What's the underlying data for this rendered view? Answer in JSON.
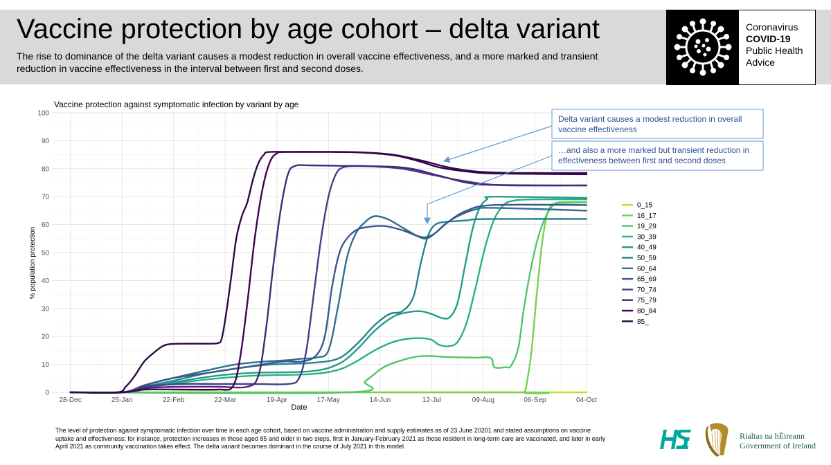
{
  "header": {
    "title": "Vaccine protection by age cohort – delta variant",
    "subtitle": "The rise to dominance of the delta variant causes a modest reduction in overall vaccine effectiveness, and a more marked and transient reduction in vaccine effectiveness in the interval between first and second doses."
  },
  "logo": {
    "line1": "Coronavirus",
    "line2": "COVID-19",
    "line3": "Public Health",
    "line4": "Advice",
    "icon": "virus-icon"
  },
  "footnote": "The level of protection against symptomatic infection over time in each age cohort, based on vaccine administration and supply estimates as of 23 June 20201 and stated assumptions on vaccine uptake and effectiveness; for instance, protection increases in those aged 85 and older in two steps, first in January-February 2021 as those resident in long-term care are vaccinated, and later in early April 2021 as community vaccination takes effect. The delta variant becomes dominant in the course of July 2021 in this model.",
  "footer_logos": {
    "hse_icon": "hse-logo-icon",
    "harp_icon": "harp-icon",
    "gov_line1": "Rialtas na hÉireann",
    "gov_line2": "Government of Ireland"
  },
  "chart_data": {
    "type": "line",
    "title": "Vaccine protection against symptomatic infection by variant by age",
    "xlabel": "Date",
    "ylabel": "% population protection",
    "ylim": [
      0,
      100
    ],
    "yticks": [
      0,
      10,
      20,
      30,
      40,
      50,
      60,
      70,
      80,
      90,
      100
    ],
    "xrange_days": [
      -10,
      283
    ],
    "xticks": [
      {
        "label": "28-Dec",
        "day": 0
      },
      {
        "label": "25-Jan",
        "day": 28
      },
      {
        "label": "22-Feb",
        "day": 56
      },
      {
        "label": "22-Mar",
        "day": 84
      },
      {
        "label": "19-Apr",
        "day": 112
      },
      {
        "label": "17-May",
        "day": 140
      },
      {
        "label": "14-Jun",
        "day": 168
      },
      {
        "label": "12-Jul",
        "day": 196
      },
      {
        "label": "09-Aug",
        "day": 224
      },
      {
        "label": "06-Sep",
        "day": 252
      },
      {
        "label": "04-Oct",
        "day": 280
      }
    ],
    "grid": true,
    "legend_position": "right",
    "series": [
      {
        "name": "0_15",
        "color": "#bddf26",
        "points": [
          [
            0,
            0
          ],
          [
            280,
            0
          ]
        ]
      },
      {
        "name": "16_17",
        "color": "#7ad151",
        "points": [
          [
            0,
            0
          ],
          [
            240,
            0
          ],
          [
            246,
            0
          ],
          [
            248,
            5
          ],
          [
            250,
            14
          ],
          [
            252,
            28
          ],
          [
            254,
            42
          ],
          [
            256,
            54
          ],
          [
            258,
            62
          ],
          [
            260,
            66
          ],
          [
            263,
            67.5
          ],
          [
            280,
            68
          ]
        ]
      },
      {
        "name": "19_29",
        "color": "#52c569",
        "points": [
          [
            0,
            0
          ],
          [
            150,
            0
          ],
          [
            160,
            4
          ],
          [
            170,
            9
          ],
          [
            180,
            11.5
          ],
          [
            188,
            12.8
          ],
          [
            195,
            13
          ],
          [
            205,
            12.6
          ],
          [
            220,
            12.4
          ],
          [
            228,
            12.3
          ],
          [
            230,
            9
          ],
          [
            236,
            9
          ],
          [
            239,
            9.5
          ],
          [
            243,
            16
          ],
          [
            246,
            30
          ],
          [
            250,
            45
          ],
          [
            254,
            56
          ],
          [
            258,
            63
          ],
          [
            262,
            67
          ],
          [
            266,
            68
          ],
          [
            280,
            68
          ]
        ]
      },
      {
        "name": "30_39",
        "color": "#2ab07f",
        "points": [
          [
            0,
            0
          ],
          [
            30,
            0
          ],
          [
            45,
            2
          ],
          [
            60,
            3.5
          ],
          [
            80,
            5
          ],
          [
            100,
            6
          ],
          [
            130,
            6.5
          ],
          [
            145,
            8
          ],
          [
            155,
            11
          ],
          [
            165,
            15
          ],
          [
            175,
            18
          ],
          [
            185,
            19.3
          ],
          [
            195,
            19
          ],
          [
            200,
            17
          ],
          [
            205,
            16.5
          ],
          [
            210,
            18
          ],
          [
            215,
            25
          ],
          [
            220,
            38
          ],
          [
            225,
            52
          ],
          [
            230,
            62
          ],
          [
            235,
            67
          ],
          [
            240,
            68.5
          ],
          [
            250,
            69
          ],
          [
            280,
            69
          ]
        ]
      },
      {
        "name": "40_49",
        "color": "#1f9e89",
        "points": [
          [
            0,
            0
          ],
          [
            30,
            0
          ],
          [
            45,
            2
          ],
          [
            60,
            4
          ],
          [
            80,
            6
          ],
          [
            100,
            7
          ],
          [
            130,
            7.5
          ],
          [
            145,
            10
          ],
          [
            155,
            15
          ],
          [
            165,
            22
          ],
          [
            175,
            27
          ],
          [
            182,
            28.5
          ],
          [
            190,
            29
          ],
          [
            196,
            28
          ],
          [
            202,
            26.5
          ],
          [
            206,
            27
          ],
          [
            210,
            32
          ],
          [
            214,
            45
          ],
          [
            218,
            58
          ],
          [
            222,
            66
          ],
          [
            226,
            69
          ],
          [
            230,
            70
          ],
          [
            280,
            69.5
          ]
        ]
      },
      {
        "name": "50_59",
        "color": "#25858e",
        "points": [
          [
            0,
            0
          ],
          [
            28,
            0
          ],
          [
            40,
            2
          ],
          [
            55,
            4
          ],
          [
            75,
            7
          ],
          [
            95,
            9
          ],
          [
            110,
            10
          ],
          [
            130,
            10.5
          ],
          [
            145,
            12
          ],
          [
            155,
            17
          ],
          [
            165,
            24
          ],
          [
            173,
            28
          ],
          [
            180,
            29
          ],
          [
            186,
            34
          ],
          [
            190,
            46
          ],
          [
            194,
            56
          ],
          [
            198,
            60
          ],
          [
            204,
            61
          ],
          [
            215,
            61.5
          ],
          [
            225,
            62
          ],
          [
            280,
            62
          ]
        ]
      },
      {
        "name": "60_64",
        "color": "#2d708e",
        "points": [
          [
            0,
            0
          ],
          [
            28,
            0
          ],
          [
            40,
            2.5
          ],
          [
            55,
            5
          ],
          [
            75,
            8
          ],
          [
            90,
            10
          ],
          [
            105,
            11
          ],
          [
            118,
            11.5
          ],
          [
            125,
            12
          ],
          [
            134,
            12.5
          ],
          [
            140,
            15
          ],
          [
            145,
            30
          ],
          [
            150,
            48
          ],
          [
            155,
            57
          ],
          [
            160,
            61
          ],
          [
            165,
            63
          ],
          [
            172,
            62
          ],
          [
            180,
            59
          ],
          [
            188,
            56
          ],
          [
            193,
            55
          ],
          [
            198,
            57
          ],
          [
            203,
            60
          ],
          [
            210,
            63
          ],
          [
            220,
            65.5
          ],
          [
            230,
            66
          ],
          [
            280,
            65
          ]
        ]
      },
      {
        "name": "65_69",
        "color": "#38588c",
        "points": [
          [
            0,
            0
          ],
          [
            28,
            0
          ],
          [
            40,
            2.5
          ],
          [
            55,
            5
          ],
          [
            75,
            7
          ],
          [
            95,
            9
          ],
          [
            115,
            11
          ],
          [
            125,
            11
          ],
          [
            133,
            13
          ],
          [
            138,
            20
          ],
          [
            142,
            38
          ],
          [
            146,
            50
          ],
          [
            150,
            55
          ],
          [
            155,
            58
          ],
          [
            160,
            59
          ],
          [
            170,
            59.5
          ],
          [
            180,
            58
          ],
          [
            188,
            56
          ],
          [
            193,
            55.5
          ],
          [
            198,
            57
          ],
          [
            205,
            61
          ],
          [
            215,
            65
          ],
          [
            230,
            67
          ],
          [
            280,
            67
          ]
        ]
      },
      {
        "name": "70_74",
        "color": "#433e85",
        "points": [
          [
            0,
            0
          ],
          [
            28,
            0
          ],
          [
            40,
            2
          ],
          [
            60,
            3
          ],
          [
            80,
            3
          ],
          [
            100,
            3
          ],
          [
            118,
            3
          ],
          [
            124,
            5
          ],
          [
            128,
            15
          ],
          [
            132,
            35
          ],
          [
            136,
            55
          ],
          [
            140,
            70
          ],
          [
            144,
            78
          ],
          [
            148,
            80.5
          ],
          [
            155,
            81
          ],
          [
            165,
            80.8
          ],
          [
            180,
            80
          ],
          [
            195,
            78
          ],
          [
            210,
            76
          ],
          [
            225,
            74.5
          ],
          [
            240,
            74
          ],
          [
            280,
            74
          ]
        ]
      },
      {
        "name": "75_79",
        "color": "#482878",
        "points": [
          [
            0,
            0
          ],
          [
            28,
            0
          ],
          [
            40,
            1.5
          ],
          [
            60,
            2
          ],
          [
            80,
            2
          ],
          [
            96,
            2
          ],
          [
            102,
            6
          ],
          [
            106,
            22
          ],
          [
            110,
            45
          ],
          [
            114,
            65
          ],
          [
            118,
            78
          ],
          [
            122,
            81
          ],
          [
            130,
            81.2
          ],
          [
            150,
            81
          ],
          [
            170,
            80.8
          ],
          [
            185,
            80
          ],
          [
            200,
            77.5
          ],
          [
            215,
            75
          ],
          [
            230,
            74.2
          ],
          [
            280,
            74
          ]
        ]
      },
      {
        "name": "80_84",
        "color": "#440154",
        "points": [
          [
            0,
            0
          ],
          [
            28,
            0
          ],
          [
            40,
            1
          ],
          [
            60,
            1
          ],
          [
            80,
            1
          ],
          [
            88,
            2
          ],
          [
            92,
            12
          ],
          [
            96,
            32
          ],
          [
            100,
            55
          ],
          [
            104,
            72
          ],
          [
            108,
            82
          ],
          [
            112,
            85.5
          ],
          [
            118,
            86
          ],
          [
            140,
            86
          ],
          [
            160,
            85.8
          ],
          [
            175,
            85
          ],
          [
            190,
            83
          ],
          [
            205,
            80.5
          ],
          [
            220,
            79
          ],
          [
            240,
            78.5
          ],
          [
            280,
            78.5
          ]
        ]
      },
      {
        "name": "85_",
        "color": "#2d0a45",
        "points": [
          [
            0,
            0
          ],
          [
            25,
            0
          ],
          [
            30,
            2
          ],
          [
            35,
            6
          ],
          [
            40,
            11
          ],
          [
            45,
            14
          ],
          [
            50,
            16.5
          ],
          [
            55,
            17.3
          ],
          [
            65,
            17.4
          ],
          [
            75,
            17.4
          ],
          [
            80,
            17.6
          ],
          [
            82,
            19
          ],
          [
            84,
            26
          ],
          [
            87,
            40
          ],
          [
            90,
            55
          ],
          [
            93,
            63
          ],
          [
            96,
            68
          ],
          [
            99,
            76
          ],
          [
            102,
            82
          ],
          [
            105,
            85
          ],
          [
            108,
            86
          ],
          [
            125,
            86
          ],
          [
            150,
            86
          ],
          [
            165,
            85.5
          ],
          [
            178,
            84.5
          ],
          [
            190,
            82.5
          ],
          [
            200,
            80.5
          ],
          [
            215,
            79
          ],
          [
            230,
            78.3
          ],
          [
            280,
            78
          ]
        ]
      }
    ],
    "annotations": [
      {
        "text": "Delta variant causes a modest reduction in  overall vaccine effectiveness",
        "line1": "Delta variant causes a modest reduction in  overall",
        "line2": "vaccine effectiveness"
      },
      {
        "text": "…and also a more marked but transient reduction in effectiveness between first and second doses",
        "line1": "…and also a more marked but transient reduction in",
        "line2": "effectiveness between first and second doses"
      }
    ]
  }
}
